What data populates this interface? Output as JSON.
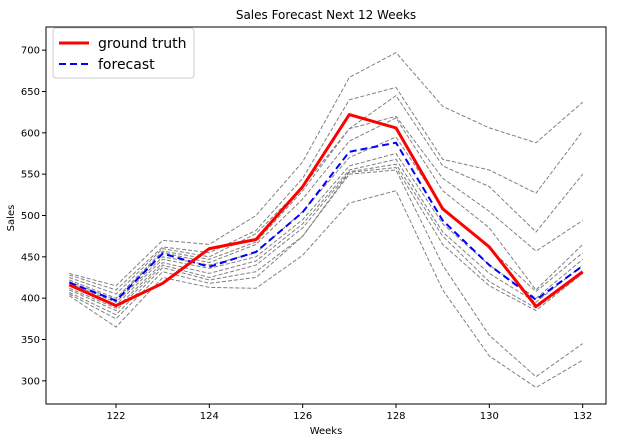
{
  "chart_data": {
    "type": "line",
    "title": "Sales Forecast Next 12 Weeks",
    "xlabel": "Weeks",
    "ylabel": "Sales",
    "xlim": [
      120.5,
      132.5
    ],
    "ylim": [
      272,
      728
    ],
    "xticks": [
      122,
      124,
      126,
      128,
      130,
      132
    ],
    "yticks": [
      300,
      350,
      400,
      450,
      500,
      550,
      600,
      650,
      700
    ],
    "grid": false,
    "legend_position": "top-left",
    "x": [
      121,
      122,
      123,
      124,
      125,
      126,
      127,
      128,
      129,
      130,
      131,
      132
    ],
    "series": [
      {
        "name": "ground truth",
        "color": "#ff0000",
        "style": "solid",
        "values": [
          416,
          391,
          418,
          460,
          471,
          535,
          622,
          606,
          508,
          462,
          390,
          432
        ]
      },
      {
        "name": "forecast",
        "color": "#0000ff",
        "style": "dashed",
        "values": [
          419,
          397,
          454,
          438,
          456,
          504,
          577,
          588,
          494,
          440,
          398,
          439
        ]
      }
    ],
    "samples": {
      "color": "#808080",
      "style": "dashed",
      "lines": [
        [
          430,
          415,
          470,
          465,
          500,
          565,
          667,
          697,
          632,
          606,
          588,
          637
        ],
        [
          428,
          410,
          462,
          455,
          482,
          545,
          640,
          655,
          568,
          555,
          527,
          602
        ],
        [
          425,
          405,
          460,
          450,
          478,
          535,
          605,
          645,
          560,
          535,
          480,
          550
        ],
        [
          422,
          400,
          457,
          447,
          468,
          530,
          605,
          620,
          545,
          505,
          457,
          494
        ],
        [
          420,
          398,
          455,
          443,
          465,
          520,
          590,
          618,
          530,
          485,
          410,
          465
        ],
        [
          418,
          395,
          450,
          440,
          455,
          505,
          570,
          595,
          510,
          460,
          408,
          455
        ],
        [
          415,
          392,
          447,
          436,
          450,
          495,
          560,
          575,
          490,
          440,
          400,
          447
        ],
        [
          412,
          388,
          443,
          430,
          445,
          490,
          555,
          568,
          480,
          430,
          395,
          440
        ],
        [
          410,
          385,
          440,
          425,
          440,
          485,
          553,
          562,
          475,
          420,
          388,
          430
        ],
        [
          407,
          380,
          437,
          422,
          432,
          475,
          552,
          558,
          465,
          415,
          385,
          430
        ],
        [
          405,
          375,
          432,
          418,
          425,
          475,
          550,
          555,
          440,
          355,
          305,
          345
        ],
        [
          403,
          365,
          425,
          413,
          412,
          452,
          515,
          530,
          410,
          330,
          292,
          325
        ]
      ]
    }
  }
}
